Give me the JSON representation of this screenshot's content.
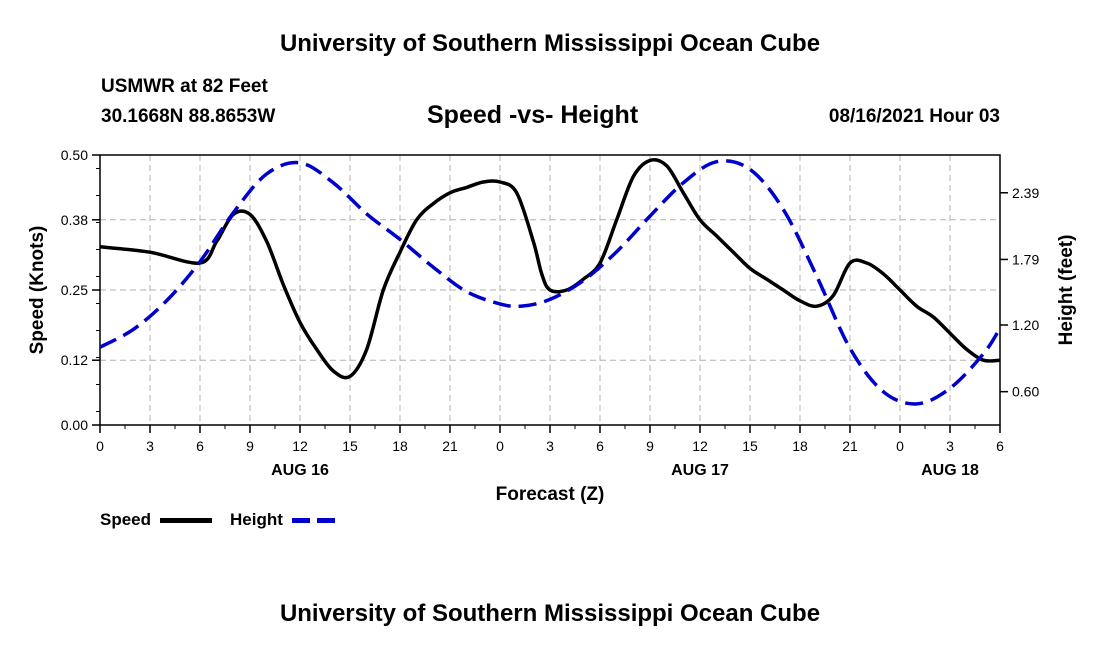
{
  "header": {
    "title": "University of Southern Mississippi Ocean Cube",
    "station": "USMWR at 82 Feet",
    "coords": "30.1668N  88.8653W",
    "subtitle": "Speed -vs- Height",
    "datetime": "08/16/2021 Hour 03"
  },
  "footer": {
    "title": "University of Southern Mississippi Ocean Cube"
  },
  "legend": {
    "speed_label": "Speed",
    "height_label": "Height"
  },
  "colors": {
    "speed": "#000000",
    "height": "#0000cc",
    "grid": "#b0b0b0"
  },
  "chart_data": {
    "type": "line",
    "xlabel": "Forecast (Z)",
    "ylabel": "Speed (Knots)",
    "y2label": "Height (feet)",
    "xlim": [
      0,
      54
    ],
    "ylim": [
      0,
      0.5
    ],
    "y2lim": [
      0.3,
      2.73
    ],
    "x_ticks": [
      0,
      3,
      6,
      9,
      12,
      15,
      18,
      21,
      24,
      27,
      30,
      33,
      36,
      39,
      42,
      45,
      48,
      51,
      54
    ],
    "x_tick_labels": [
      "0",
      "3",
      "6",
      "9",
      "12",
      "15",
      "18",
      "21",
      "0",
      "3",
      "6",
      "9",
      "12",
      "15",
      "18",
      "21",
      "0",
      "3",
      "6"
    ],
    "y_ticks": [
      0,
      0.12,
      0.25,
      0.38,
      0.5
    ],
    "y_tick_labels": [
      "0.00",
      "0.12",
      "0.25",
      "0.38",
      "0.50"
    ],
    "y2_ticks": [
      0.6,
      1.2,
      1.79,
      2.39
    ],
    "y2_tick_labels": [
      "0.60",
      "1.20",
      "1.79",
      "2.39"
    ],
    "day_labels": [
      {
        "x": 12,
        "label": "AUG 16"
      },
      {
        "x": 36,
        "label": "AUG 17"
      },
      {
        "x": 51,
        "label": "AUG 18"
      }
    ],
    "series": [
      {
        "name": "Speed",
        "axis": "left",
        "style": "solid",
        "x": [
          0,
          3,
          6,
          7,
          8,
          9,
          10,
          11,
          12,
          13,
          14,
          15,
          16,
          17,
          18,
          19,
          20,
          21,
          22,
          23,
          24,
          25,
          26,
          26.5,
          27,
          28,
          29,
          30,
          31,
          32,
          33,
          34,
          35,
          36,
          37,
          38,
          39,
          40,
          41,
          42,
          43,
          44,
          45,
          46,
          47,
          48,
          49,
          50,
          51,
          52,
          53,
          54
        ],
        "values": [
          0.33,
          0.32,
          0.3,
          0.34,
          0.39,
          0.39,
          0.34,
          0.26,
          0.19,
          0.14,
          0.1,
          0.09,
          0.14,
          0.25,
          0.32,
          0.38,
          0.41,
          0.43,
          0.44,
          0.45,
          0.45,
          0.43,
          0.34,
          0.28,
          0.25,
          0.25,
          0.27,
          0.3,
          0.38,
          0.46,
          0.49,
          0.48,
          0.43,
          0.38,
          0.35,
          0.32,
          0.29,
          0.27,
          0.25,
          0.23,
          0.22,
          0.24,
          0.3,
          0.3,
          0.28,
          0.25,
          0.22,
          0.2,
          0.17,
          0.14,
          0.12,
          0.12
        ]
      },
      {
        "name": "Height",
        "axis": "right",
        "style": "dashed",
        "x": [
          0,
          2,
          4,
          6,
          8,
          10,
          12,
          14,
          16,
          18,
          20,
          22,
          24,
          25.3,
          27,
          29,
          31,
          33,
          35,
          37,
          39,
          41,
          43,
          45,
          47,
          49,
          51,
          53,
          54
        ],
        "values": [
          1.0,
          1.16,
          1.42,
          1.77,
          2.21,
          2.56,
          2.66,
          2.48,
          2.2,
          1.97,
          1.72,
          1.5,
          1.39,
          1.37,
          1.43,
          1.6,
          1.86,
          2.18,
          2.48,
          2.67,
          2.6,
          2.24,
          1.64,
          0.99,
          0.6,
          0.49,
          0.63,
          0.94,
          1.17
        ]
      }
    ]
  }
}
